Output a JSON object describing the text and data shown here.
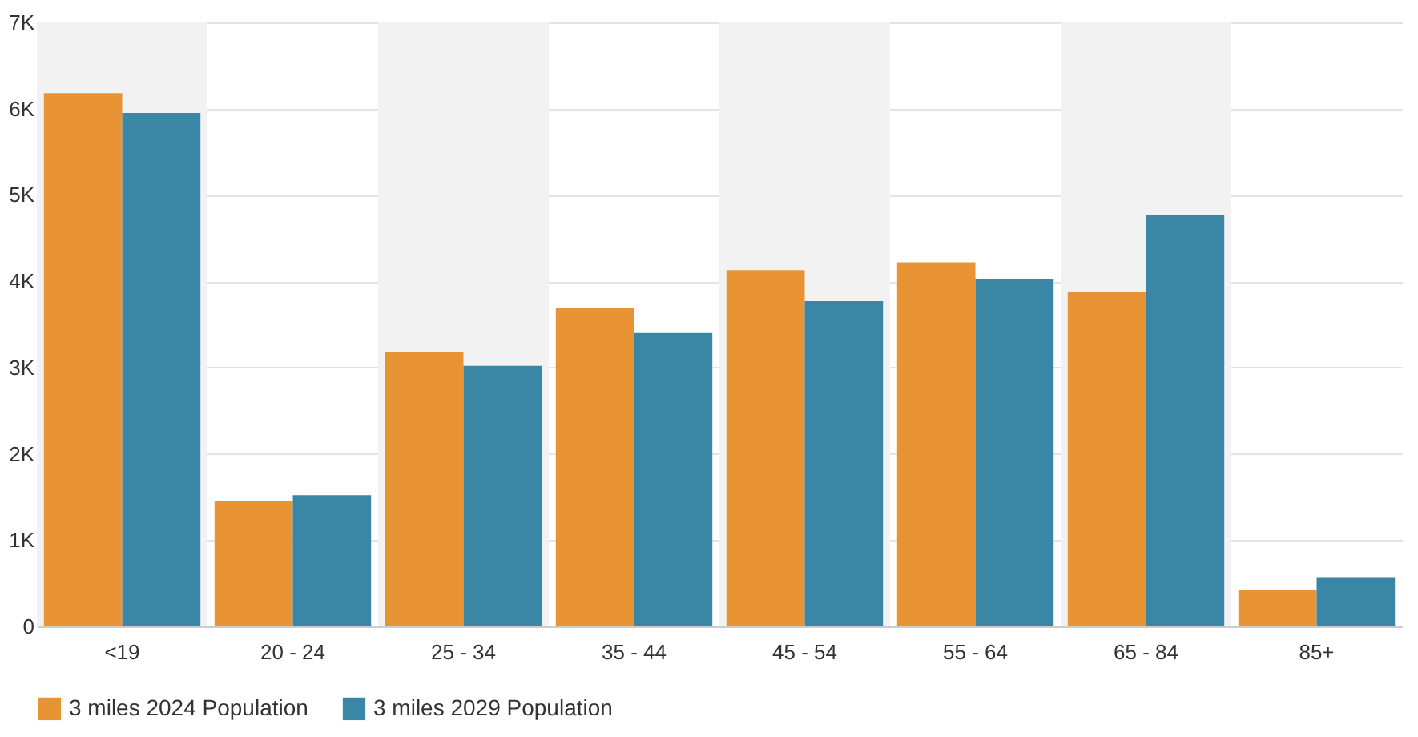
{
  "chart_data": {
    "type": "bar",
    "categories": [
      "<19",
      "20 - 24",
      "25 - 34",
      "35 - 44",
      "45 - 54",
      "55 - 64",
      "65 - 84",
      "85+"
    ],
    "series": [
      {
        "name": "3 miles 2024 Population",
        "color": "#e99434",
        "values": [
          6180,
          1450,
          3180,
          3690,
          4130,
          4220,
          3880,
          420
        ]
      },
      {
        "name": "3 miles 2029 Population",
        "color": "#3a86a5",
        "values": [
          5950,
          1520,
          3020,
          3400,
          3770,
          4030,
          4770,
          570
        ]
      }
    ],
    "ylim": [
      0,
      7000
    ],
    "yticks": [
      {
        "value": 0,
        "label": "0"
      },
      {
        "value": 1000,
        "label": "1K"
      },
      {
        "value": 2000,
        "label": "2K"
      },
      {
        "value": 3000,
        "label": "3K"
      },
      {
        "value": 4000,
        "label": "4K"
      },
      {
        "value": 5000,
        "label": "5K"
      },
      {
        "value": 6000,
        "label": "6K"
      },
      {
        "value": 7000,
        "label": "7K"
      }
    ],
    "bands": [
      {
        "axis": "x",
        "from": "<19",
        "to": "<19",
        "color": "#f2f2f2"
      },
      {
        "axis": "x",
        "from": "25 - 34",
        "to": "25 - 34",
        "color": "#f2f2f2"
      },
      {
        "axis": "x",
        "from": "45 - 54",
        "to": "45 - 54",
        "color": "#f2f2f2"
      },
      {
        "axis": "x",
        "from": "65 - 84",
        "to": "65 - 84",
        "color": "#f2f2f2"
      }
    ],
    "grid": "y",
    "legend": "bottom"
  }
}
